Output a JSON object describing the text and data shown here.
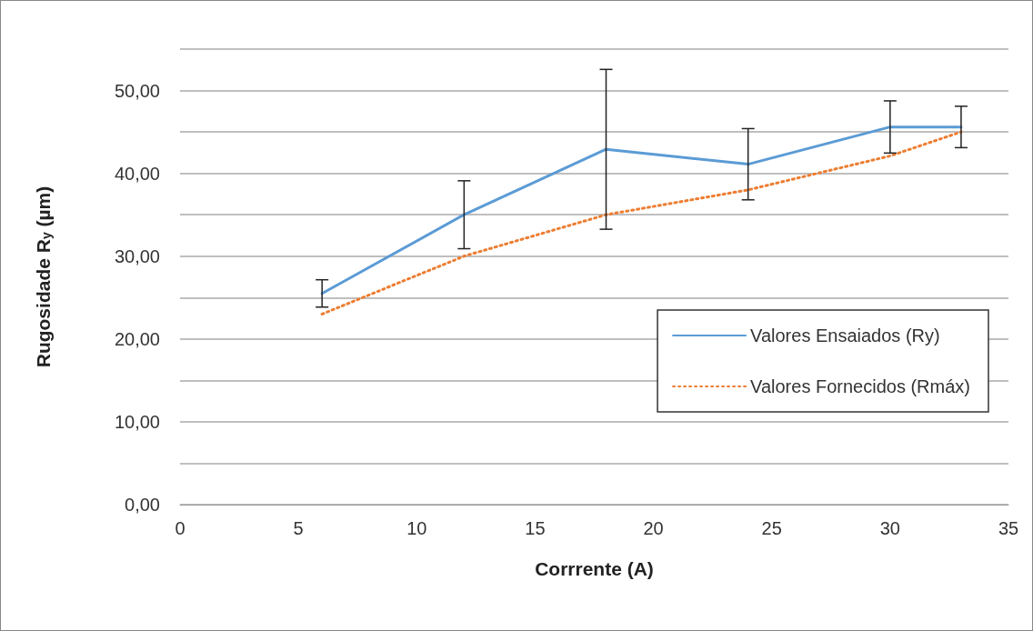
{
  "chart_data": {
    "type": "line",
    "xlabel": "Corrrente (A)",
    "ylabel": "Rugosidade R$_{y}$ (µm)",
    "x": [
      6,
      12,
      18,
      24,
      30,
      33
    ],
    "series": [
      {
        "name": "Valores Ensaiados (Ry)",
        "color": "#5b9bd5",
        "line_style": "solid",
        "values": [
          25.5,
          35.0,
          42.9,
          41.1,
          45.6,
          45.6
        ],
        "errors": [
          1.65,
          4.1,
          9.65,
          4.3,
          3.15,
          2.5
        ]
      },
      {
        "name": "Valores Fornecidos (Rmáx)",
        "color": "#ed7d31",
        "line_style": "dotted",
        "values": [
          23.0,
          30.0,
          35.0,
          38.0,
          42.1,
          45.0
        ]
      }
    ],
    "xlim": [
      0,
      35
    ],
    "xticks": [
      0,
      5,
      10,
      15,
      20,
      25,
      30,
      35
    ],
    "ylim": [
      0,
      55
    ],
    "yticks": [
      {
        "value": 0,
        "label": "0,00"
      },
      {
        "value": 5,
        "label": null
      },
      {
        "value": 10,
        "label": "10,00"
      },
      {
        "value": 15,
        "label": null
      },
      {
        "value": 20,
        "label": "20,00"
      },
      {
        "value": 25,
        "label": null
      },
      {
        "value": 30,
        "label": "30,00"
      },
      {
        "value": 35,
        "label": null
      },
      {
        "value": 40,
        "label": "40,00"
      },
      {
        "value": 45,
        "label": null
      },
      {
        "value": 50,
        "label": "50,00"
      },
      {
        "value": 55,
        "label": null
      }
    ],
    "grid": "y",
    "legend": "right",
    "marker": "none"
  }
}
